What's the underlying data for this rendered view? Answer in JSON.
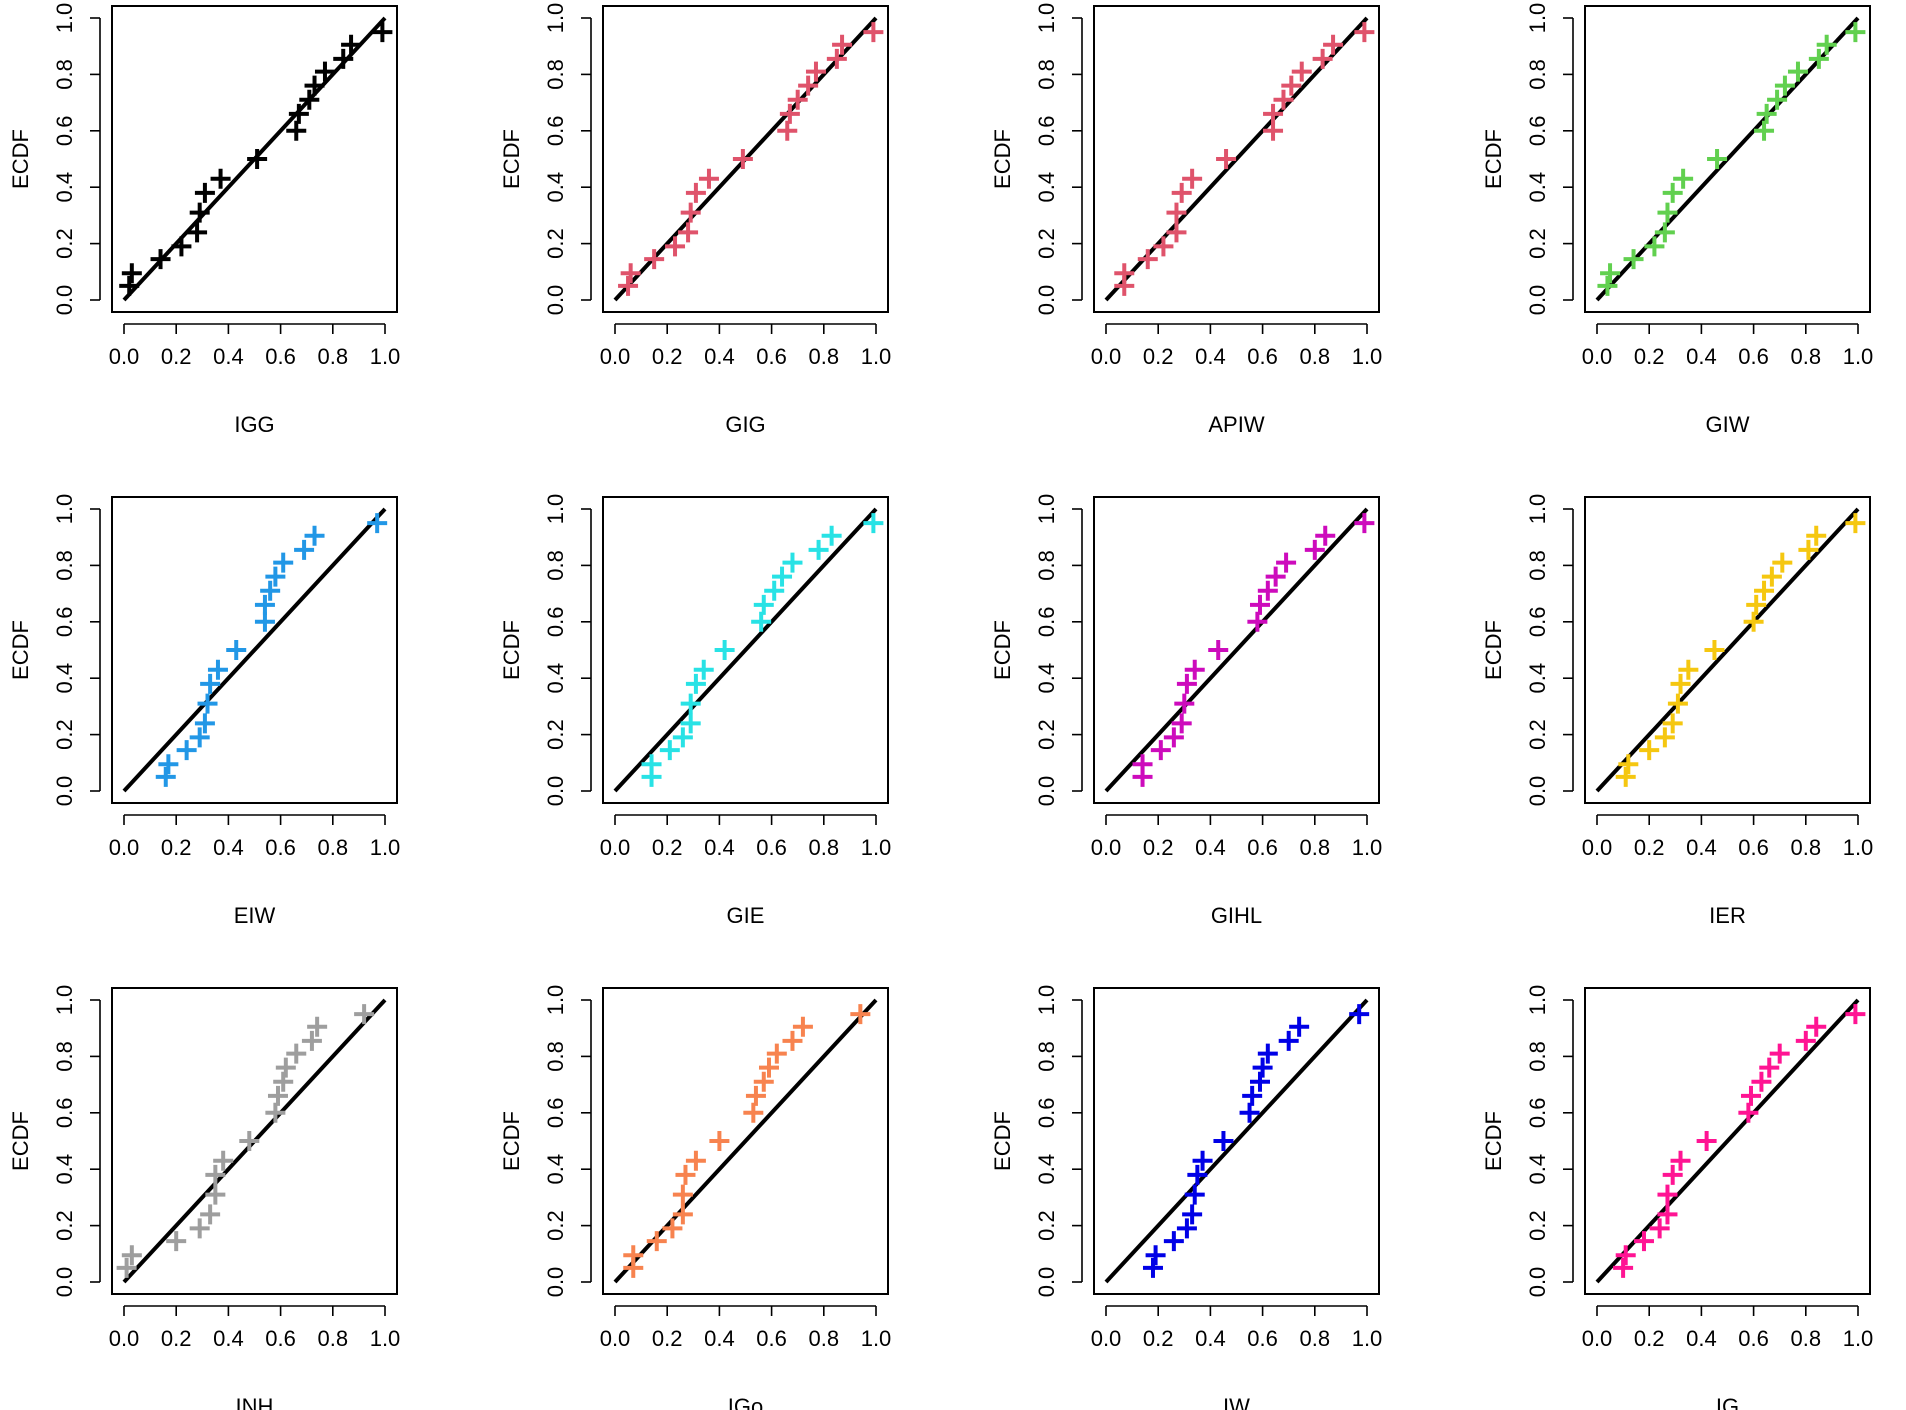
{
  "figure_title": "",
  "chart_data": [
    {
      "type": "scatter",
      "title": "",
      "xlabel": "IGG",
      "ylabel": "ECDF",
      "color": "#000000",
      "xlim": [
        0,
        1
      ],
      "ylim": [
        0,
        1
      ],
      "xticks": [
        "0.0",
        "0.2",
        "0.4",
        "0.6",
        "0.8",
        "1.0"
      ],
      "yticks": [
        "0.0",
        "0.2",
        "0.4",
        "0.6",
        "0.8",
        "1.0"
      ],
      "reference_line": "y = x",
      "points": [
        [
          0.02,
          0.05
        ],
        [
          0.03,
          0.095
        ],
        [
          0.14,
          0.145
        ],
        [
          0.22,
          0.19
        ],
        [
          0.28,
          0.24
        ],
        [
          0.29,
          0.31
        ],
        [
          0.31,
          0.38
        ],
        [
          0.37,
          0.43
        ],
        [
          0.51,
          0.5
        ],
        [
          0.66,
          0.6
        ],
        [
          0.67,
          0.66
        ],
        [
          0.71,
          0.71
        ],
        [
          0.73,
          0.76
        ],
        [
          0.77,
          0.81
        ],
        [
          0.84,
          0.855
        ],
        [
          0.87,
          0.905
        ],
        [
          0.99,
          0.95
        ]
      ]
    },
    {
      "type": "scatter",
      "title": "",
      "xlabel": "GIG",
      "ylabel": "ECDF",
      "color": "#df536b",
      "xlim": [
        0,
        1
      ],
      "ylim": [
        0,
        1
      ],
      "xticks": [
        "0.0",
        "0.2",
        "0.4",
        "0.6",
        "0.8",
        "1.0"
      ],
      "yticks": [
        "0.0",
        "0.2",
        "0.4",
        "0.6",
        "0.8",
        "1.0"
      ],
      "reference_line": "y = x",
      "points": [
        [
          0.05,
          0.05
        ],
        [
          0.06,
          0.095
        ],
        [
          0.15,
          0.145
        ],
        [
          0.23,
          0.19
        ],
        [
          0.28,
          0.24
        ],
        [
          0.29,
          0.31
        ],
        [
          0.31,
          0.38
        ],
        [
          0.36,
          0.43
        ],
        [
          0.49,
          0.5
        ],
        [
          0.66,
          0.6
        ],
        [
          0.67,
          0.66
        ],
        [
          0.7,
          0.71
        ],
        [
          0.74,
          0.76
        ],
        [
          0.77,
          0.81
        ],
        [
          0.85,
          0.855
        ],
        [
          0.87,
          0.905
        ],
        [
          0.99,
          0.95
        ]
      ]
    },
    {
      "type": "scatter",
      "title": "",
      "xlabel": "APIW",
      "ylabel": "ECDF",
      "color": "#df536b",
      "xlim": [
        0,
        1
      ],
      "ylim": [
        0,
        1
      ],
      "xticks": [
        "0.0",
        "0.2",
        "0.4",
        "0.6",
        "0.8",
        "1.0"
      ],
      "yticks": [
        "0.0",
        "0.2",
        "0.4",
        "0.6",
        "0.8",
        "1.0"
      ],
      "reference_line": "y = x",
      "points": [
        [
          0.07,
          0.05
        ],
        [
          0.07,
          0.095
        ],
        [
          0.16,
          0.145
        ],
        [
          0.22,
          0.19
        ],
        [
          0.27,
          0.24
        ],
        [
          0.27,
          0.31
        ],
        [
          0.29,
          0.38
        ],
        [
          0.33,
          0.43
        ],
        [
          0.46,
          0.5
        ],
        [
          0.64,
          0.6
        ],
        [
          0.64,
          0.66
        ],
        [
          0.68,
          0.71
        ],
        [
          0.71,
          0.76
        ],
        [
          0.75,
          0.81
        ],
        [
          0.83,
          0.855
        ],
        [
          0.87,
          0.905
        ],
        [
          0.99,
          0.95
        ]
      ]
    },
    {
      "type": "scatter",
      "title": "",
      "xlabel": "GIW",
      "ylabel": "ECDF",
      "color": "#61d04f",
      "xlim": [
        0,
        1
      ],
      "ylim": [
        0,
        1
      ],
      "xticks": [
        "0.0",
        "0.2",
        "0.4",
        "0.6",
        "0.8",
        "1.0"
      ],
      "yticks": [
        "0.0",
        "0.2",
        "0.4",
        "0.6",
        "0.8",
        "1.0"
      ],
      "reference_line": "y = x",
      "points": [
        [
          0.04,
          0.05
        ],
        [
          0.05,
          0.095
        ],
        [
          0.14,
          0.145
        ],
        [
          0.22,
          0.19
        ],
        [
          0.26,
          0.24
        ],
        [
          0.27,
          0.31
        ],
        [
          0.29,
          0.38
        ],
        [
          0.33,
          0.43
        ],
        [
          0.46,
          0.5
        ],
        [
          0.64,
          0.6
        ],
        [
          0.65,
          0.66
        ],
        [
          0.69,
          0.71
        ],
        [
          0.72,
          0.76
        ],
        [
          0.77,
          0.81
        ],
        [
          0.85,
          0.855
        ],
        [
          0.88,
          0.905
        ],
        [
          0.99,
          0.95
        ]
      ]
    },
    {
      "type": "scatter",
      "title": "",
      "xlabel": "EIW",
      "ylabel": "ECDF",
      "color": "#2297e6",
      "xlim": [
        0,
        1
      ],
      "ylim": [
        0,
        1
      ],
      "xticks": [
        "0.0",
        "0.2",
        "0.4",
        "0.6",
        "0.8",
        "1.0"
      ],
      "yticks": [
        "0.0",
        "0.2",
        "0.4",
        "0.6",
        "0.8",
        "1.0"
      ],
      "reference_line": "y = x",
      "points": [
        [
          0.16,
          0.05
        ],
        [
          0.17,
          0.095
        ],
        [
          0.24,
          0.145
        ],
        [
          0.29,
          0.19
        ],
        [
          0.31,
          0.24
        ],
        [
          0.32,
          0.31
        ],
        [
          0.33,
          0.38
        ],
        [
          0.36,
          0.43
        ],
        [
          0.43,
          0.5
        ],
        [
          0.54,
          0.6
        ],
        [
          0.54,
          0.66
        ],
        [
          0.56,
          0.71
        ],
        [
          0.58,
          0.76
        ],
        [
          0.61,
          0.81
        ],
        [
          0.69,
          0.855
        ],
        [
          0.73,
          0.905
        ],
        [
          0.97,
          0.95
        ]
      ]
    },
    {
      "type": "scatter",
      "title": "",
      "xlabel": "GIE",
      "ylabel": "ECDF",
      "color": "#28e2e5",
      "xlim": [
        0,
        1
      ],
      "ylim": [
        0,
        1
      ],
      "xticks": [
        "0.0",
        "0.2",
        "0.4",
        "0.6",
        "0.8",
        "1.0"
      ],
      "yticks": [
        "0.0",
        "0.2",
        "0.4",
        "0.6",
        "0.8",
        "1.0"
      ],
      "reference_line": "y = x",
      "points": [
        [
          0.14,
          0.05
        ],
        [
          0.14,
          0.095
        ],
        [
          0.21,
          0.145
        ],
        [
          0.26,
          0.19
        ],
        [
          0.29,
          0.24
        ],
        [
          0.29,
          0.31
        ],
        [
          0.31,
          0.38
        ],
        [
          0.34,
          0.43
        ],
        [
          0.42,
          0.5
        ],
        [
          0.56,
          0.6
        ],
        [
          0.57,
          0.66
        ],
        [
          0.61,
          0.71
        ],
        [
          0.64,
          0.76
        ],
        [
          0.68,
          0.81
        ],
        [
          0.78,
          0.855
        ],
        [
          0.83,
          0.905
        ],
        [
          0.99,
          0.95
        ]
      ]
    },
    {
      "type": "scatter",
      "title": "",
      "xlabel": "GIHL",
      "ylabel": "ECDF",
      "color": "#cd0bbc",
      "xlim": [
        0,
        1
      ],
      "ylim": [
        0,
        1
      ],
      "xticks": [
        "0.0",
        "0.2",
        "0.4",
        "0.6",
        "0.8",
        "1.0"
      ],
      "yticks": [
        "0.0",
        "0.2",
        "0.4",
        "0.6",
        "0.8",
        "1.0"
      ],
      "reference_line": "y = x",
      "points": [
        [
          0.14,
          0.05
        ],
        [
          0.14,
          0.095
        ],
        [
          0.21,
          0.145
        ],
        [
          0.26,
          0.19
        ],
        [
          0.29,
          0.24
        ],
        [
          0.3,
          0.31
        ],
        [
          0.31,
          0.38
        ],
        [
          0.34,
          0.43
        ],
        [
          0.43,
          0.5
        ],
        [
          0.58,
          0.6
        ],
        [
          0.59,
          0.66
        ],
        [
          0.62,
          0.71
        ],
        [
          0.65,
          0.76
        ],
        [
          0.69,
          0.81
        ],
        [
          0.8,
          0.855
        ],
        [
          0.84,
          0.905
        ],
        [
          0.99,
          0.95
        ]
      ]
    },
    {
      "type": "scatter",
      "title": "",
      "xlabel": "IER",
      "ylabel": "ECDF",
      "color": "#f5c710",
      "xlim": [
        0,
        1
      ],
      "ylim": [
        0,
        1
      ],
      "xticks": [
        "0.0",
        "0.2",
        "0.4",
        "0.6",
        "0.8",
        "1.0"
      ],
      "yticks": [
        "0.0",
        "0.2",
        "0.4",
        "0.6",
        "0.8",
        "1.0"
      ],
      "reference_line": "y = x",
      "points": [
        [
          0.11,
          0.05
        ],
        [
          0.12,
          0.095
        ],
        [
          0.2,
          0.145
        ],
        [
          0.26,
          0.19
        ],
        [
          0.29,
          0.24
        ],
        [
          0.31,
          0.31
        ],
        [
          0.32,
          0.38
        ],
        [
          0.35,
          0.43
        ],
        [
          0.45,
          0.5
        ],
        [
          0.6,
          0.6
        ],
        [
          0.61,
          0.66
        ],
        [
          0.64,
          0.71
        ],
        [
          0.67,
          0.76
        ],
        [
          0.71,
          0.81
        ],
        [
          0.81,
          0.855
        ],
        [
          0.84,
          0.905
        ],
        [
          0.99,
          0.95
        ]
      ]
    },
    {
      "type": "scatter",
      "title": "",
      "xlabel": "INH",
      "ylabel": "ECDF",
      "color": "#9e9e9e",
      "xlim": [
        0,
        1
      ],
      "ylim": [
        0,
        1
      ],
      "xticks": [
        "0.0",
        "0.2",
        "0.4",
        "0.6",
        "0.8",
        "1.0"
      ],
      "yticks": [
        "0.0",
        "0.2",
        "0.4",
        "0.6",
        "0.8",
        "1.0"
      ],
      "reference_line": "y = x",
      "points": [
        [
          0.01,
          0.05
        ],
        [
          0.03,
          0.095
        ],
        [
          0.2,
          0.145
        ],
        [
          0.29,
          0.19
        ],
        [
          0.33,
          0.24
        ],
        [
          0.35,
          0.31
        ],
        [
          0.35,
          0.38
        ],
        [
          0.38,
          0.43
        ],
        [
          0.48,
          0.5
        ],
        [
          0.58,
          0.6
        ],
        [
          0.59,
          0.66
        ],
        [
          0.61,
          0.71
        ],
        [
          0.62,
          0.76
        ],
        [
          0.66,
          0.81
        ],
        [
          0.72,
          0.855
        ],
        [
          0.74,
          0.905
        ],
        [
          0.92,
          0.95
        ]
      ]
    },
    {
      "type": "scatter",
      "title": "",
      "xlabel": "IGo",
      "ylabel": "ECDF",
      "color": "#f7834f",
      "xlim": [
        0,
        1
      ],
      "ylim": [
        0,
        1
      ],
      "xticks": [
        "0.0",
        "0.2",
        "0.4",
        "0.6",
        "0.8",
        "1.0"
      ],
      "yticks": [
        "0.0",
        "0.2",
        "0.4",
        "0.6",
        "0.8",
        "1.0"
      ],
      "reference_line": "y = x",
      "points": [
        [
          0.07,
          0.05
        ],
        [
          0.07,
          0.095
        ],
        [
          0.16,
          0.145
        ],
        [
          0.22,
          0.19
        ],
        [
          0.26,
          0.24
        ],
        [
          0.26,
          0.31
        ],
        [
          0.27,
          0.38
        ],
        [
          0.31,
          0.43
        ],
        [
          0.4,
          0.5
        ],
        [
          0.53,
          0.6
        ],
        [
          0.54,
          0.66
        ],
        [
          0.57,
          0.71
        ],
        [
          0.59,
          0.76
        ],
        [
          0.62,
          0.81
        ],
        [
          0.68,
          0.855
        ],
        [
          0.72,
          0.905
        ],
        [
          0.94,
          0.95
        ]
      ]
    },
    {
      "type": "scatter",
      "title": "",
      "xlabel": "IW",
      "ylabel": "ECDF",
      "color": "#0000e6",
      "xlim": [
        0,
        1
      ],
      "ylim": [
        0,
        1
      ],
      "xticks": [
        "0.0",
        "0.2",
        "0.4",
        "0.6",
        "0.8",
        "1.0"
      ],
      "yticks": [
        "0.0",
        "0.2",
        "0.4",
        "0.6",
        "0.8",
        "1.0"
      ],
      "reference_line": "y = x",
      "points": [
        [
          0.18,
          0.05
        ],
        [
          0.19,
          0.095
        ],
        [
          0.26,
          0.145
        ],
        [
          0.31,
          0.19
        ],
        [
          0.33,
          0.24
        ],
        [
          0.34,
          0.31
        ],
        [
          0.35,
          0.38
        ],
        [
          0.37,
          0.43
        ],
        [
          0.45,
          0.5
        ],
        [
          0.55,
          0.6
        ],
        [
          0.56,
          0.66
        ],
        [
          0.59,
          0.71
        ],
        [
          0.6,
          0.76
        ],
        [
          0.62,
          0.81
        ],
        [
          0.7,
          0.855
        ],
        [
          0.74,
          0.905
        ],
        [
          0.97,
          0.95
        ]
      ]
    },
    {
      "type": "scatter",
      "title": "",
      "xlabel": "IG",
      "ylabel": "ECDF",
      "color": "#ff1493",
      "xlim": [
        0,
        1
      ],
      "ylim": [
        0,
        1
      ],
      "xticks": [
        "0.0",
        "0.2",
        "0.4",
        "0.6",
        "0.8",
        "1.0"
      ],
      "yticks": [
        "0.0",
        "0.2",
        "0.4",
        "0.6",
        "0.8",
        "1.0"
      ],
      "reference_line": "y = x",
      "points": [
        [
          0.1,
          0.05
        ],
        [
          0.11,
          0.095
        ],
        [
          0.18,
          0.145
        ],
        [
          0.24,
          0.19
        ],
        [
          0.27,
          0.24
        ],
        [
          0.27,
          0.31
        ],
        [
          0.29,
          0.38
        ],
        [
          0.32,
          0.43
        ],
        [
          0.42,
          0.5
        ],
        [
          0.58,
          0.6
        ],
        [
          0.59,
          0.66
        ],
        [
          0.63,
          0.71
        ],
        [
          0.66,
          0.76
        ],
        [
          0.7,
          0.81
        ],
        [
          0.8,
          0.855
        ],
        [
          0.84,
          0.905
        ],
        [
          0.99,
          0.95
        ]
      ]
    }
  ]
}
